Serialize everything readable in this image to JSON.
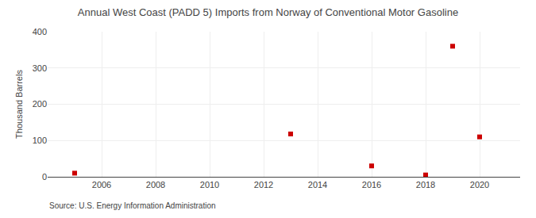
{
  "chart_data": {
    "type": "scatter",
    "title": "Annual West Coast (PADD 5) Imports from Norway of Conventional Motor Gasoline",
    "ylabel": "Thousand Barrels",
    "annotations": [
      "Source: U.S. Energy Information Administration"
    ],
    "x": [
      2005,
      2013,
      2016,
      2018,
      2019,
      2020
    ],
    "values": [
      10,
      118,
      30,
      5,
      360,
      110
    ],
    "color": "#cc0000",
    "marker": "square",
    "xlim": [
      2004.0,
      2021.5
    ],
    "xticks": [
      2006,
      2008,
      2010,
      2012,
      2014,
      2016,
      2018,
      2020
    ],
    "ylim": [
      0,
      400
    ],
    "yticks": [
      0,
      100,
      200,
      300,
      400
    ],
    "grid": true
  }
}
